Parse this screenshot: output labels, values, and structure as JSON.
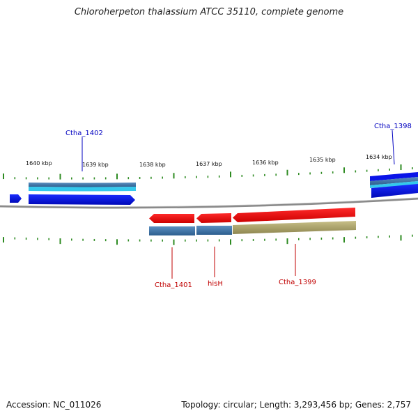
{
  "title": "Chloroherpeton thalassium ATCC 35110, complete genome",
  "footer": {
    "accession": "Accession: NC_011026",
    "summary": "Topology: circular; Length: 3,293,456 bp; Genes: 2,757"
  },
  "scale_labels": [
    "1640 kbp",
    "1639 kbp",
    "1638 kbp",
    "1637 kbp",
    "1636 kbp",
    "1635 kbp",
    "1634 kbp"
  ],
  "genes": {
    "forward_strand": [
      "Ctha_1402",
      "Ctha_1398"
    ],
    "reverse_strand": [
      "Ctha_1401",
      "hisH",
      "Ctha_1399"
    ]
  },
  "colors": {
    "forward_label": "#0000c0",
    "reverse_label": "#c00000",
    "forward_gene": "#0a14e8",
    "reverse_gene": "#ee1111",
    "cds_blue": "#4a7fb0",
    "cds_light": "#33ccee",
    "cds_khaki": "#b0a868",
    "backbone": "#888888",
    "tick": "#2e8b22"
  }
}
